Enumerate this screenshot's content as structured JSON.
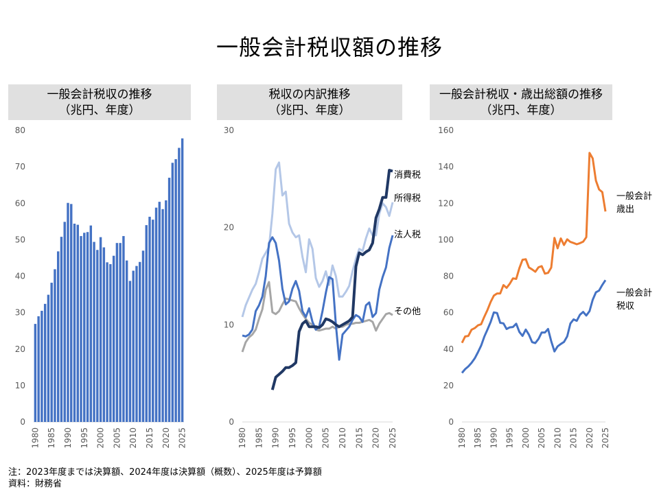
{
  "title": "一般会計税収額の推移",
  "panels": [
    {
      "title_line1": "一般会計税収の推移",
      "title_line2": "（兆円、年度）"
    },
    {
      "title_line1": "税収の内訳推移",
      "title_line2": "（兆円、年度）"
    },
    {
      "title_line1": "一般会計税収・歳出総額の推移",
      "title_line2": "（兆円、年度）"
    }
  ],
  "notes": {
    "line1": "注：2023年度までは決算額、2024年度は決算額（概数）、2025年度は予算額",
    "line2": "資料：財務省"
  },
  "colors": {
    "bar": "#4472c4",
    "consumption": "#203864",
    "income": "#b4c7e7",
    "corporate": "#4472c4",
    "other": "#a6a6a6",
    "expenditure": "#ed7d31",
    "revenue": "#4472c4",
    "axis": "#d9d9d9"
  },
  "chart_data": [
    {
      "type": "bar",
      "title": "一般会計税収の推移（兆円、年度）",
      "x_ticks": [
        1980,
        1985,
        1990,
        1995,
        2000,
        2005,
        2010,
        2015,
        2020,
        2025
      ],
      "ylim": [
        0,
        80
      ],
      "y_ticks": [
        0,
        10,
        20,
        30,
        40,
        50,
        60,
        70,
        80
      ],
      "categories": [
        1980,
        1981,
        1982,
        1983,
        1984,
        1985,
        1986,
        1987,
        1988,
        1989,
        1990,
        1991,
        1992,
        1993,
        1994,
        1995,
        1996,
        1997,
        1998,
        1999,
        2000,
        2001,
        2002,
        2003,
        2004,
        2005,
        2006,
        2007,
        2008,
        2009,
        2010,
        2011,
        2012,
        2013,
        2014,
        2015,
        2016,
        2017,
        2018,
        2019,
        2020,
        2021,
        2022,
        2023,
        2024,
        2025
      ],
      "values": [
        26.9,
        29.0,
        30.5,
        32.4,
        34.9,
        38.2,
        41.9,
        46.8,
        50.8,
        54.9,
        60.1,
        59.8,
        54.4,
        54.1,
        51.0,
        51.9,
        52.1,
        53.9,
        49.4,
        47.2,
        50.7,
        47.9,
        43.8,
        43.3,
        45.6,
        49.1,
        49.1,
        51.0,
        44.3,
        38.7,
        41.5,
        42.8,
        43.9,
        47.0,
        54.0,
        56.3,
        55.5,
        58.8,
        60.4,
        58.4,
        60.8,
        67.0,
        71.1,
        72.1,
        75.2,
        77.8
      ]
    },
    {
      "type": "line",
      "title": "税収の内訳推移（兆円、年度）",
      "x_ticks": [
        1980,
        1985,
        1990,
        1995,
        2000,
        2005,
        2010,
        2015,
        2020,
        2025
      ],
      "ylim": [
        0,
        30
      ],
      "y_ticks": [
        0,
        10,
        20,
        30
      ],
      "series": [
        {
          "name": "消費税",
          "x": [
            1989,
            1990,
            1991,
            1992,
            1993,
            1994,
            1995,
            1996,
            1997,
            1998,
            1999,
            2000,
            2001,
            2002,
            2003,
            2004,
            2005,
            2006,
            2007,
            2008,
            2009,
            2010,
            2011,
            2012,
            2013,
            2014,
            2015,
            2016,
            2017,
            2018,
            2019,
            2020,
            2021,
            2022,
            2023,
            2024,
            2025
          ],
          "values": [
            3.3,
            4.6,
            4.9,
            5.2,
            5.6,
            5.6,
            5.8,
            6.1,
            9.3,
            10.1,
            10.4,
            9.8,
            9.8,
            9.8,
            9.7,
            10.0,
            10.6,
            10.5,
            10.3,
            10.0,
            9.8,
            10.0,
            10.2,
            10.4,
            10.8,
            16.0,
            17.4,
            17.2,
            17.5,
            17.7,
            18.4,
            21.0,
            21.9,
            23.1,
            23.1,
            25.9,
            25.8
          ]
        },
        {
          "name": "所得税",
          "x": [
            1980,
            1981,
            1982,
            1983,
            1984,
            1985,
            1986,
            1987,
            1988,
            1989,
            1990,
            1991,
            1992,
            1993,
            1994,
            1995,
            1996,
            1997,
            1998,
            1999,
            2000,
            2001,
            2002,
            2003,
            2004,
            2005,
            2006,
            2007,
            2008,
            2009,
            2010,
            2011,
            2012,
            2013,
            2014,
            2015,
            2016,
            2017,
            2018,
            2019,
            2020,
            2021,
            2022,
            2023,
            2024,
            2025
          ],
          "values": [
            10.8,
            12.0,
            12.8,
            13.6,
            14.2,
            15.4,
            16.8,
            17.4,
            18.0,
            21.4,
            26.0,
            26.7,
            23.3,
            23.7,
            20.4,
            19.5,
            19.0,
            19.2,
            17.0,
            15.4,
            18.8,
            17.8,
            14.8,
            13.9,
            14.5,
            15.5,
            14.1,
            16.1,
            15.0,
            12.9,
            12.9,
            13.4,
            14.0,
            15.5,
            16.8,
            17.8,
            17.6,
            18.9,
            19.9,
            19.2,
            19.2,
            21.4,
            22.5,
            22.1,
            21.2,
            22.6
          ]
        },
        {
          "name": "法人税",
          "x": [
            1980,
            1981,
            1982,
            1983,
            1984,
            1985,
            1986,
            1987,
            1988,
            1989,
            1990,
            1991,
            1992,
            1993,
            1994,
            1995,
            1996,
            1997,
            1998,
            1999,
            2000,
            2001,
            2002,
            2003,
            2004,
            2005,
            2006,
            2007,
            2008,
            2009,
            2010,
            2011,
            2012,
            2013,
            2014,
            2015,
            2016,
            2017,
            2018,
            2019,
            2020,
            2021,
            2022,
            2023,
            2024,
            2025
          ],
          "values": [
            8.9,
            8.8,
            9.0,
            9.5,
            11.4,
            12.0,
            12.9,
            15.0,
            18.4,
            19.0,
            18.4,
            16.6,
            13.7,
            12.1,
            12.4,
            13.7,
            14.5,
            13.5,
            11.4,
            10.8,
            11.7,
            10.3,
            9.5,
            9.8,
            11.4,
            13.3,
            14.9,
            14.7,
            10.0,
            6.4,
            9.0,
            9.4,
            9.8,
            10.5,
            11.0,
            10.8,
            10.3,
            12.0,
            12.3,
            10.8,
            11.2,
            13.6,
            14.9,
            15.9,
            17.9,
            19.2
          ]
        },
        {
          "name": "その他",
          "x": [
            1980,
            1981,
            1982,
            1983,
            1984,
            1985,
            1986,
            1987,
            1988,
            1989,
            1990,
            1991,
            1992,
            1993,
            1994,
            1995,
            1996,
            1997,
            1998,
            1999,
            2000,
            2001,
            2002,
            2003,
            2004,
            2005,
            2006,
            2007,
            2008,
            2009,
            2010,
            2011,
            2012,
            2013,
            2014,
            2015,
            2016,
            2017,
            2018,
            2019,
            2020,
            2021,
            2022,
            2023,
            2024,
            2025
          ],
          "values": [
            7.2,
            8.2,
            8.7,
            9.0,
            9.5,
            10.6,
            11.6,
            13.6,
            14.4,
            11.3,
            11.1,
            11.4,
            12.1,
            12.7,
            12.6,
            12.5,
            12.4,
            11.7,
            11.1,
            10.6,
            10.2,
            10.0,
            9.5,
            9.4,
            9.5,
            9.6,
            9.6,
            9.8,
            9.6,
            9.8,
            9.8,
            10.0,
            10.1,
            10.1,
            10.2,
            10.2,
            10.3,
            10.4,
            10.5,
            10.3,
            9.4,
            10.1,
            10.6,
            11.1,
            11.2,
            11.0
          ]
        }
      ]
    },
    {
      "type": "line",
      "title": "一般会計税収・歳出総額の推移（兆円、年度）",
      "x_ticks": [
        1980,
        1985,
        1990,
        1995,
        2000,
        2005,
        2010,
        2015,
        2020,
        2025
      ],
      "ylim": [
        0,
        160
      ],
      "y_ticks": [
        0,
        20,
        40,
        60,
        80,
        100,
        120,
        140,
        160
      ],
      "series": [
        {
          "name": "一般会計歳出",
          "x": [
            1980,
            1981,
            1982,
            1983,
            1984,
            1985,
            1986,
            1987,
            1988,
            1989,
            1990,
            1991,
            1992,
            1993,
            1994,
            1995,
            1996,
            1997,
            1998,
            1999,
            2000,
            2001,
            2002,
            2003,
            2004,
            2005,
            2006,
            2007,
            2008,
            2009,
            2010,
            2011,
            2012,
            2013,
            2014,
            2015,
            2016,
            2017,
            2018,
            2019,
            2020,
            2021,
            2022,
            2023,
            2024,
            2025
          ],
          "values": [
            43.4,
            46.9,
            47.2,
            50.6,
            51.5,
            53.0,
            53.6,
            57.7,
            61.5,
            65.9,
            69.3,
            70.5,
            70.5,
            75.1,
            73.6,
            75.9,
            78.8,
            78.5,
            84.4,
            89.0,
            89.3,
            84.8,
            83.7,
            82.4,
            84.9,
            85.5,
            81.4,
            81.8,
            84.7,
            101.0,
            95.3,
            100.7,
            97.1,
            100.2,
            98.8,
            98.2,
            97.5,
            98.1,
            98.9,
            101.4,
            147.6,
            144.6,
            132.4,
            127.6,
            126.1,
            115.5
          ]
        },
        {
          "name": "一般会計税収",
          "x": [
            1980,
            1981,
            1982,
            1983,
            1984,
            1985,
            1986,
            1987,
            1988,
            1989,
            1990,
            1991,
            1992,
            1993,
            1994,
            1995,
            1996,
            1997,
            1998,
            1999,
            2000,
            2001,
            2002,
            2003,
            2004,
            2005,
            2006,
            2007,
            2008,
            2009,
            2010,
            2011,
            2012,
            2013,
            2014,
            2015,
            2016,
            2017,
            2018,
            2019,
            2020,
            2021,
            2022,
            2023,
            2024,
            2025
          ],
          "values": [
            26.9,
            29.0,
            30.5,
            32.4,
            34.9,
            38.2,
            41.9,
            46.8,
            50.8,
            54.9,
            60.1,
            59.8,
            54.4,
            54.1,
            51.0,
            51.9,
            52.1,
            53.9,
            49.4,
            47.2,
            50.7,
            47.9,
            43.8,
            43.3,
            45.6,
            49.1,
            49.1,
            51.0,
            44.3,
            38.7,
            41.5,
            42.8,
            43.9,
            47.0,
            54.0,
            56.3,
            55.5,
            58.8,
            60.4,
            58.4,
            60.8,
            67.0,
            71.1,
            72.1,
            75.2,
            77.8
          ]
        }
      ],
      "labels": {
        "expenditure_line1": "一般会計",
        "expenditure_line2": "歳出",
        "revenue_line1": "一般会計",
        "revenue_line2": "税収"
      }
    }
  ]
}
